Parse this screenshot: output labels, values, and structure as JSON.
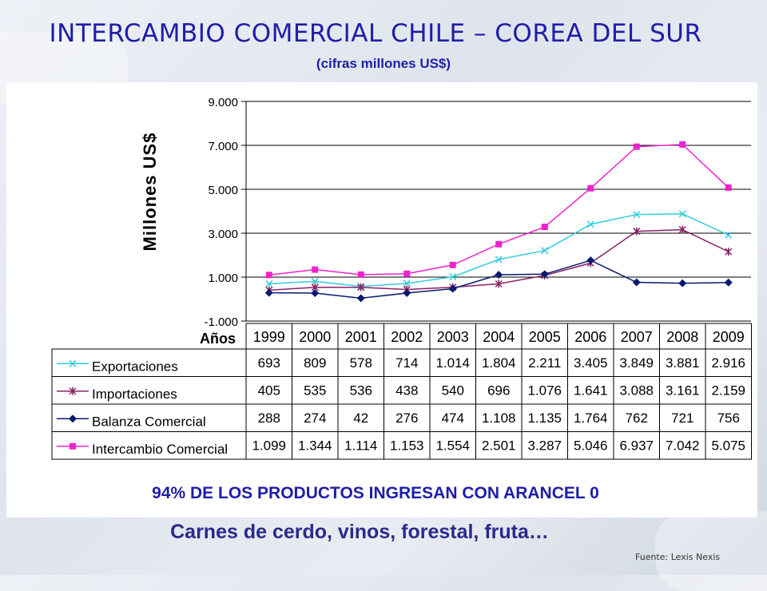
{
  "title": "INTERCAMBIO COMERCIAL CHILE – COREA DEL SUR",
  "subtitle": "(cifras millones US$)",
  "footer": {
    "arancel": "94% DE LOS PRODUCTOS INGRESAN CON ARANCEL 0",
    "products": "Carnes de cerdo, vinos, forestal, fruta…",
    "source": "Fuente:   Lexis Nexis"
  },
  "chart_data": {
    "type": "line",
    "ylabel": "Millones US$",
    "xlabel": "Años",
    "ylim": [
      -1000,
      9000
    ],
    "yticks": [
      "9.000",
      "7.000",
      "5.000",
      "3.000",
      "1.000",
      "-1.000"
    ],
    "ytick_values": [
      9000,
      7000,
      5000,
      3000,
      1000,
      -1000
    ],
    "grid": true,
    "categories": [
      "1999",
      "2000",
      "2001",
      "2002",
      "2003",
      "2004",
      "2005",
      "2006",
      "2007",
      "2008",
      "2009"
    ],
    "series": [
      {
        "name": "Exportaciones",
        "color": "#33ccdd",
        "marker": "x",
        "values": [
          693,
          809,
          578,
          714,
          1014,
          1804,
          2211,
          3405,
          3849,
          3881,
          2916
        ],
        "labels": [
          "693",
          "809",
          "578",
          "714",
          "1.014",
          "1.804",
          "2.211",
          "3.405",
          "3.849",
          "3.881",
          "2.916"
        ]
      },
      {
        "name": "Importaciones",
        "color": "#882266",
        "marker": "star",
        "values": [
          405,
          535,
          536,
          438,
          540,
          696,
          1076,
          1641,
          3088,
          3161,
          2159
        ],
        "labels": [
          "405",
          "535",
          "536",
          "438",
          "540",
          "696",
          "1.076",
          "1.641",
          "3.088",
          "3.161",
          "2.159"
        ]
      },
      {
        "name": "Balanza Comercial",
        "color": "#0a1a6e",
        "marker": "diamond",
        "values": [
          288,
          274,
          42,
          276,
          474,
          1108,
          1135,
          1764,
          762,
          721,
          756
        ],
        "labels": [
          "288",
          "274",
          "42",
          "276",
          "474",
          "1.108",
          "1.135",
          "1.764",
          "762",
          "721",
          "756"
        ]
      },
      {
        "name": "Intercambio Comercial",
        "color": "#ee22cc",
        "marker": "square",
        "values": [
          1099,
          1344,
          1114,
          1153,
          1554,
          2501,
          3287,
          5046,
          6937,
          7042,
          5075
        ],
        "labels": [
          "1.099",
          "1.344",
          "1.114",
          "1.153",
          "1.554",
          "2.501",
          "3.287",
          "5.046",
          "6.937",
          "7.042",
          "5.075"
        ]
      }
    ]
  }
}
